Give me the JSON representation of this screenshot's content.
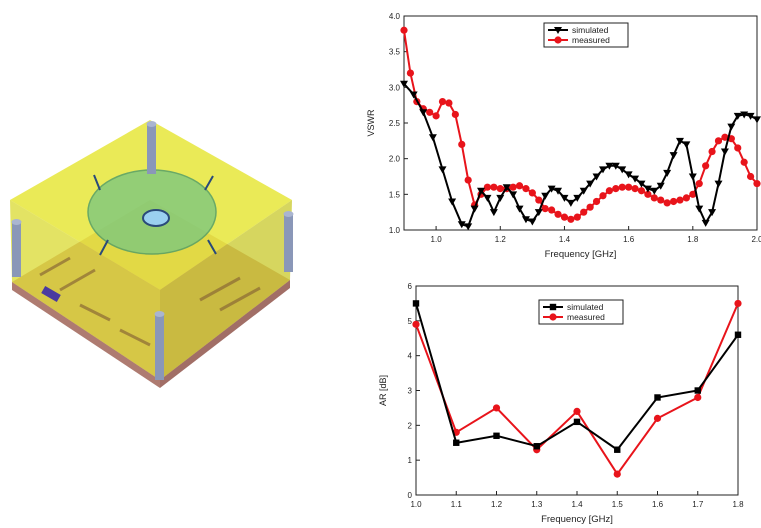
{
  "colors": {
    "simulated": "#000000",
    "measured": "#e8141b",
    "substrate_top": "#e6e63a",
    "patch": "#7ec87e",
    "ground": "#b96b5d",
    "post": "#8a97b8"
  },
  "figure": {
    "description_icon": "antenna-3d-model"
  },
  "chart_data": [
    {
      "type": "line",
      "xlabel": "Frequency [GHz]",
      "ylabel": "VSWR",
      "xlim": [
        0.9,
        2.0
      ],
      "ylim": [
        1.0,
        4.0
      ],
      "xticks": [
        1.0,
        1.2,
        1.4,
        1.6,
        1.8,
        2.0
      ],
      "xtick_labels": [
        "1.0",
        "1.2",
        "1.4",
        "1.6",
        "1.8",
        "2.0"
      ],
      "yticks": [
        1.0,
        1.5,
        2.0,
        2.5,
        3.0,
        3.5,
        4.0
      ],
      "ytick_labels": [
        "1.0",
        "1.5",
        "2.0",
        "2.5",
        "3.0",
        "3.5",
        "4.0"
      ],
      "grid": false,
      "legend_position": "top-center",
      "series": [
        {
          "name": "simulated",
          "marker": "triangle-down",
          "x": [
            0.9,
            0.93,
            0.96,
            0.99,
            1.02,
            1.05,
            1.08,
            1.1,
            1.12,
            1.14,
            1.16,
            1.18,
            1.2,
            1.22,
            1.24,
            1.26,
            1.28,
            1.3,
            1.32,
            1.34,
            1.36,
            1.38,
            1.4,
            1.42,
            1.44,
            1.46,
            1.48,
            1.5,
            1.52,
            1.54,
            1.56,
            1.58,
            1.6,
            1.62,
            1.64,
            1.66,
            1.68,
            1.7,
            1.72,
            1.74,
            1.76,
            1.78,
            1.8,
            1.82,
            1.84,
            1.86,
            1.88,
            1.9,
            1.92,
            1.94,
            1.96,
            1.98,
            2.0
          ],
          "y": [
            3.05,
            2.9,
            2.65,
            2.3,
            1.85,
            1.4,
            1.08,
            1.05,
            1.3,
            1.55,
            1.45,
            1.25,
            1.45,
            1.6,
            1.5,
            1.3,
            1.15,
            1.12,
            1.25,
            1.48,
            1.58,
            1.55,
            1.45,
            1.38,
            1.45,
            1.55,
            1.65,
            1.75,
            1.85,
            1.9,
            1.9,
            1.85,
            1.78,
            1.72,
            1.65,
            1.58,
            1.55,
            1.62,
            1.8,
            2.05,
            2.25,
            2.2,
            1.75,
            1.3,
            1.1,
            1.25,
            1.65,
            2.1,
            2.45,
            2.6,
            2.62,
            2.6,
            2.55
          ]
        },
        {
          "name": "measured",
          "marker": "circle",
          "x": [
            0.9,
            0.92,
            0.94,
            0.96,
            0.98,
            1.0,
            1.02,
            1.04,
            1.06,
            1.08,
            1.1,
            1.12,
            1.14,
            1.16,
            1.18,
            1.2,
            1.22,
            1.24,
            1.26,
            1.28,
            1.3,
            1.32,
            1.34,
            1.36,
            1.38,
            1.4,
            1.42,
            1.44,
            1.46,
            1.48,
            1.5,
            1.52,
            1.54,
            1.56,
            1.58,
            1.6,
            1.62,
            1.64,
            1.66,
            1.68,
            1.7,
            1.72,
            1.74,
            1.76,
            1.78,
            1.8,
            1.82,
            1.84,
            1.86,
            1.88,
            1.9,
            1.92,
            1.94,
            1.96,
            1.98,
            2.0
          ],
          "y": [
            3.8,
            3.2,
            2.8,
            2.7,
            2.65,
            2.6,
            2.8,
            2.78,
            2.62,
            2.2,
            1.7,
            1.35,
            1.5,
            1.6,
            1.6,
            1.58,
            1.58,
            1.6,
            1.62,
            1.58,
            1.52,
            1.42,
            1.3,
            1.28,
            1.22,
            1.18,
            1.15,
            1.18,
            1.25,
            1.32,
            1.4,
            1.48,
            1.55,
            1.58,
            1.6,
            1.6,
            1.58,
            1.55,
            1.5,
            1.45,
            1.42,
            1.38,
            1.4,
            1.42,
            1.45,
            1.5,
            1.65,
            1.9,
            2.1,
            2.25,
            2.3,
            2.28,
            2.15,
            1.95,
            1.75,
            1.65
          ]
        }
      ]
    },
    {
      "type": "line",
      "xlabel": "Frequency [GHz]",
      "ylabel": "AR [dB]",
      "xlim": [
        1.0,
        1.8
      ],
      "ylim": [
        0,
        6
      ],
      "xticks": [
        1.0,
        1.1,
        1.2,
        1.3,
        1.4,
        1.5,
        1.6,
        1.7,
        1.8
      ],
      "xtick_labels": [
        "1.0",
        "1.1",
        "1.2",
        "1.3",
        "1.4",
        "1.5",
        "1.6",
        "1.7",
        "1.8"
      ],
      "yticks": [
        0,
        1,
        2,
        3,
        4,
        5,
        6
      ],
      "ytick_labels": [
        "0",
        "1",
        "2",
        "3",
        "4",
        "5",
        "6"
      ],
      "grid": false,
      "legend_position": "top-center",
      "series": [
        {
          "name": "simulated",
          "marker": "square",
          "x": [
            1.0,
            1.1,
            1.2,
            1.3,
            1.4,
            1.5,
            1.6,
            1.7,
            1.8
          ],
          "y": [
            5.5,
            1.5,
            1.7,
            1.4,
            2.1,
            1.3,
            2.8,
            3.0,
            4.6
          ]
        },
        {
          "name": "measured",
          "marker": "circle",
          "x": [
            1.0,
            1.1,
            1.2,
            1.3,
            1.4,
            1.5,
            1.6,
            1.7,
            1.8
          ],
          "y": [
            4.9,
            1.8,
            2.5,
            1.3,
            2.4,
            0.6,
            2.2,
            2.8,
            5.5
          ]
        }
      ]
    }
  ]
}
